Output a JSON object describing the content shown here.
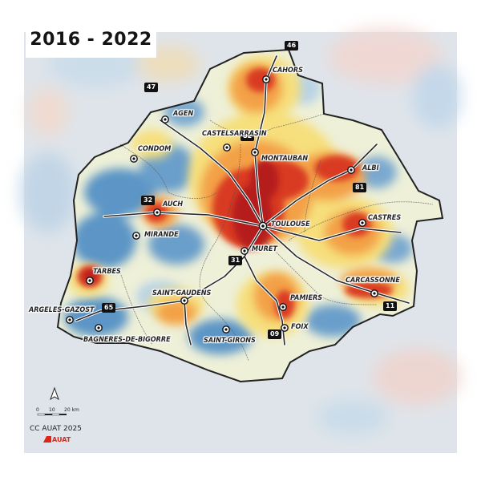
{
  "title": "2016 - 2022",
  "credit": "CC AUAT 2025",
  "brand": "AUAT",
  "scale": {
    "labels": [
      "0",
      "10",
      "20 km"
    ]
  },
  "colors": {
    "blue": "#5b95c6",
    "light_blue": "#b9d3e6",
    "yellow": "#f6df7c",
    "orange": "#f3a046",
    "red": "#d93a24",
    "dark_red": "#b51c1a",
    "pale_bg": "#dfe4ea",
    "brand": "#e0241a"
  },
  "cities": [
    {
      "name": "CAHORS",
      "icon": "city-marker-icon"
    },
    {
      "name": "AGEN",
      "icon": "city-marker-icon"
    },
    {
      "name": "CASTELSARRASIN",
      "icon": "city-marker-icon"
    },
    {
      "name": "MONTAUBAN",
      "icon": "city-marker-icon"
    },
    {
      "name": "CONDOM",
      "icon": "city-marker-icon"
    },
    {
      "name": "ALBI",
      "icon": "city-marker-icon"
    },
    {
      "name": "AUCH",
      "icon": "city-marker-icon"
    },
    {
      "name": "TOULOUSE",
      "icon": "city-marker-icon"
    },
    {
      "name": "CASTRES",
      "icon": "city-marker-icon"
    },
    {
      "name": "MIRANDE",
      "icon": "city-marker-icon"
    },
    {
      "name": "MURET",
      "icon": "city-marker-icon"
    },
    {
      "name": "TARBES",
      "icon": "city-marker-icon"
    },
    {
      "name": "CARCASSONNE",
      "icon": "city-marker-icon"
    },
    {
      "name": "PAMIERS",
      "icon": "city-marker-icon"
    },
    {
      "name": "ARGELES-GAZOST",
      "icon": "city-marker-icon"
    },
    {
      "name": "SAINT-GAUDENS",
      "icon": "city-marker-icon"
    },
    {
      "name": "BAGNERES-DE-BIGORRE",
      "icon": "city-marker-icon"
    },
    {
      "name": "FOIX",
      "icon": "city-marker-icon"
    },
    {
      "name": "SAINT-GIRONS",
      "icon": "city-marker-icon"
    }
  ],
  "departments": [
    "46",
    "47",
    "82",
    "32",
    "81",
    "31",
    "65",
    "09",
    "11"
  ]
}
